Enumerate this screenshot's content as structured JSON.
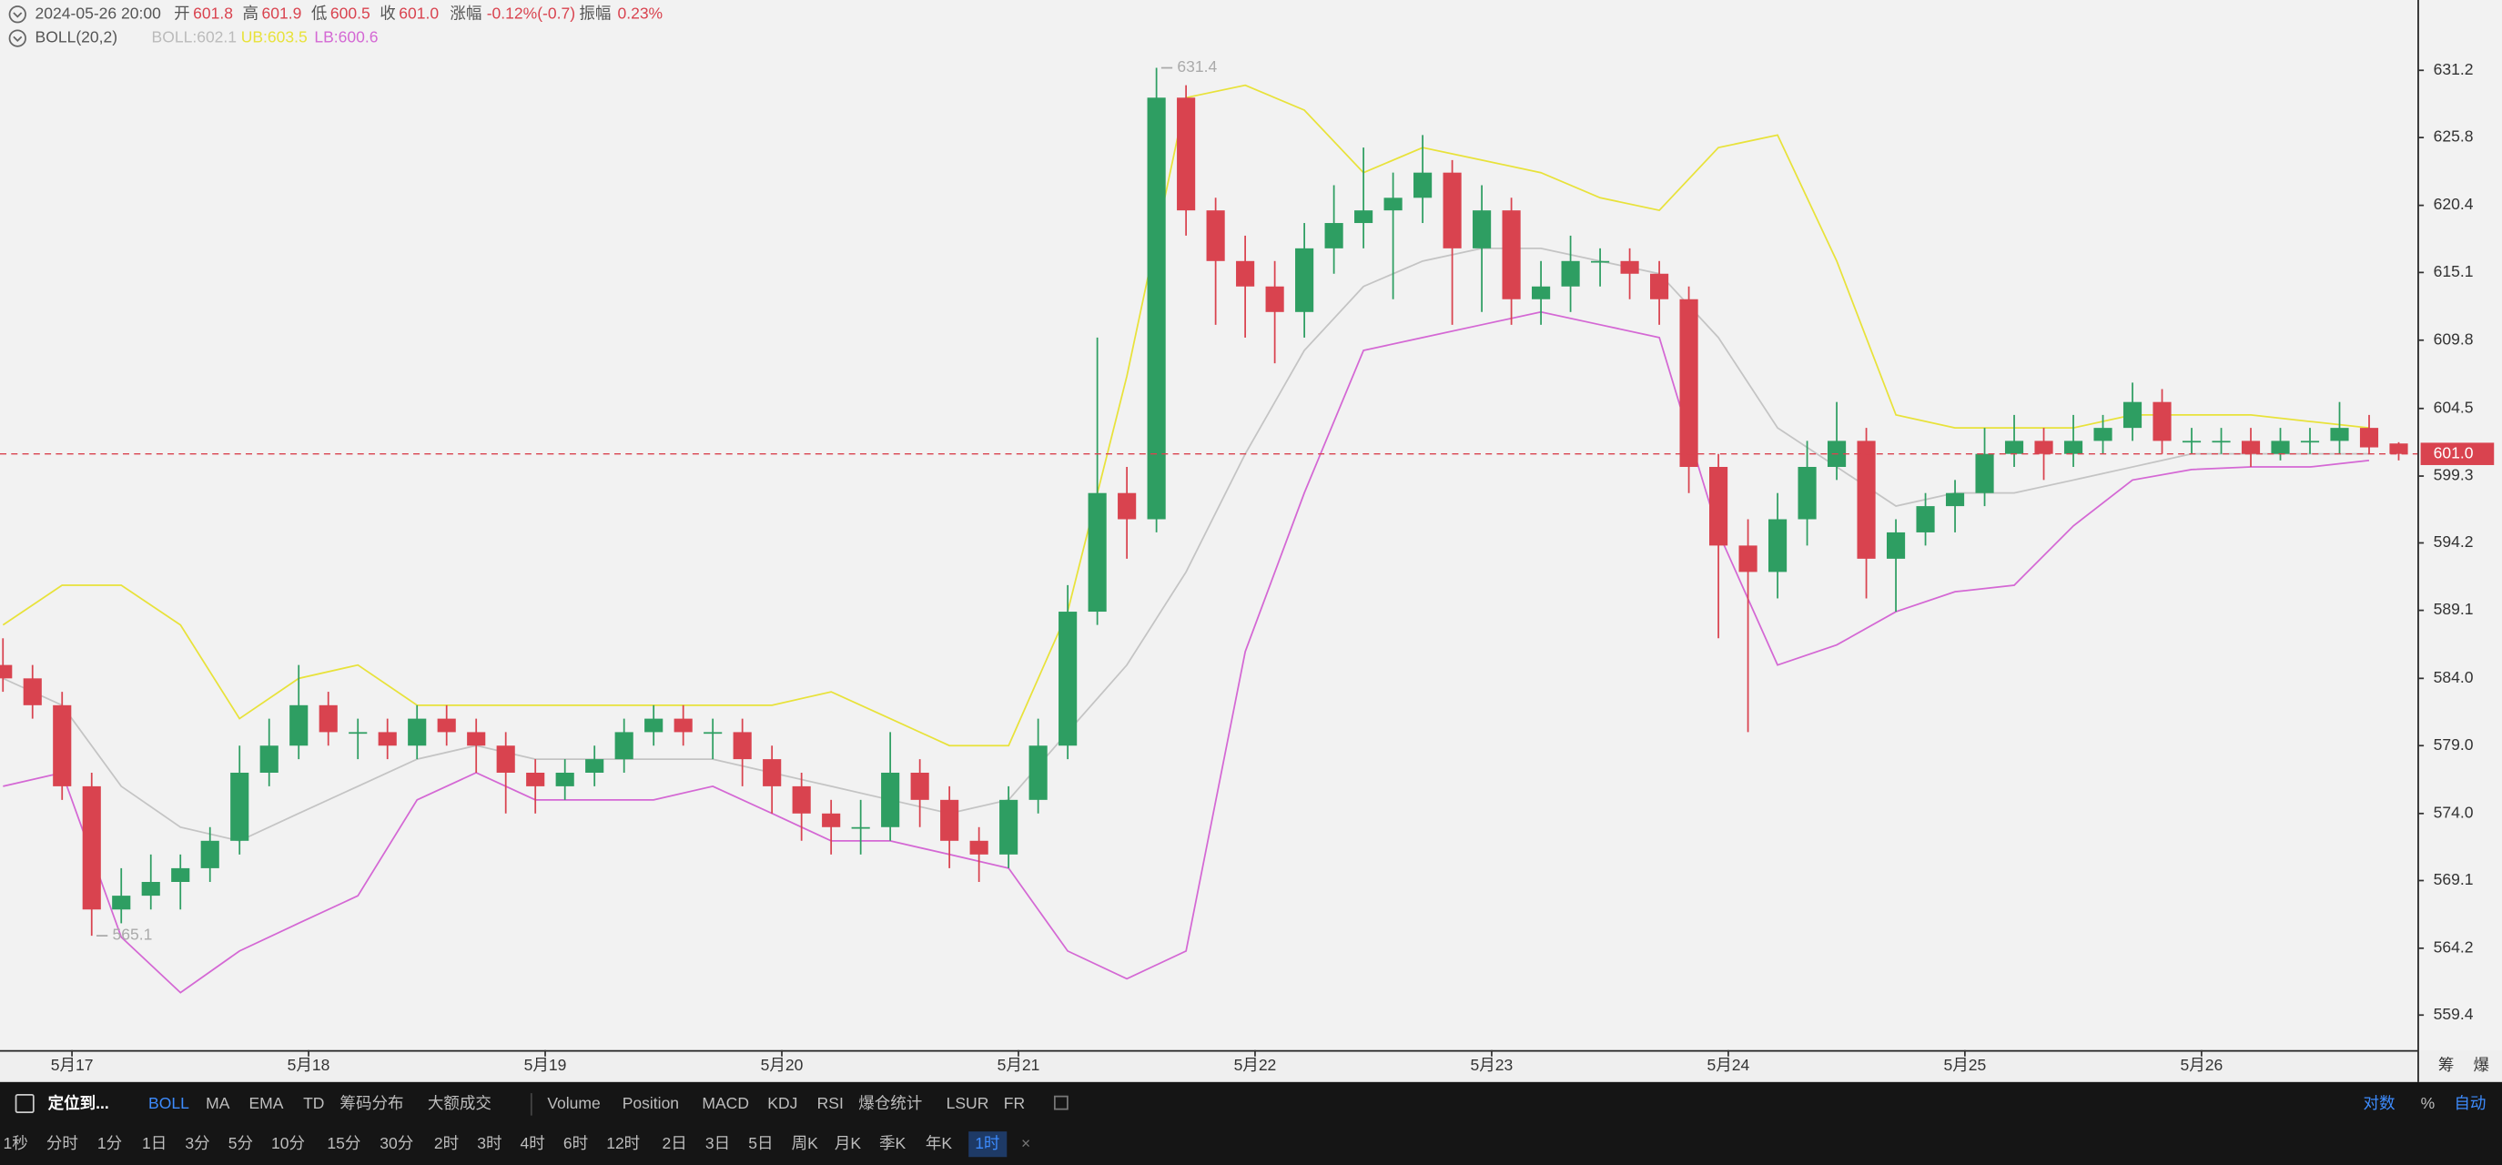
{
  "chart_data": {
    "type": "candlestick",
    "timestamp": "2024-05-26 20:00",
    "header_labels": {
      "open": "开",
      "high": "高",
      "low": "低",
      "close": "收",
      "change": "涨幅",
      "amplitude": "振幅"
    },
    "change": "-0.12%(-0.7)",
    "amplitude": "0.23%",
    "indicator": "BOLL(20,2)",
    "log_scale": true,
    "colors": {
      "up": "#2e9e62",
      "down": "#d9434f"
    },
    "x": [
      -7,
      -4,
      -1,
      2,
      5,
      8,
      11,
      14,
      17,
      20,
      23,
      26,
      29,
      32,
      35,
      38,
      41,
      44,
      47,
      50,
      53,
      56,
      59,
      62,
      65,
      68,
      71,
      74,
      77,
      80,
      83,
      86,
      89,
      92,
      95,
      98,
      101,
      104,
      107,
      110,
      113,
      116,
      119,
      122,
      125,
      128,
      131,
      134,
      137,
      140,
      143,
      146,
      149,
      152,
      155,
      158,
      161,
      164,
      167,
      170,
      173,
      176,
      179,
      182,
      185,
      188,
      191,
      194,
      197,
      200,
      203,
      206,
      209,
      212,
      215,
      218,
      221,
      224,
      227,
      230,
      233,
      236
    ],
    "open": [
      585,
      584,
      582,
      576,
      567,
      568,
      569,
      570,
      572,
      577,
      579,
      582,
      580,
      580,
      579,
      581,
      580,
      579,
      577,
      576,
      577,
      578,
      580,
      581,
      580,
      580,
      578,
      576,
      574,
      573,
      573,
      577,
      575,
      572,
      571,
      575,
      579,
      589,
      598,
      596,
      629,
      620,
      616,
      614,
      612,
      617,
      619,
      620,
      621,
      623,
      617,
      620,
      613,
      614,
      616,
      616,
      615,
      613,
      600,
      594,
      592,
      596,
      600,
      602,
      593,
      595,
      597,
      598,
      601,
      602,
      601,
      602,
      603,
      605,
      602,
      602,
      602,
      601,
      602,
      602,
      603,
      601.8
    ],
    "high": [
      587,
      585,
      583,
      577,
      570,
      571,
      571,
      573,
      579,
      581,
      585,
      583,
      581,
      581,
      582,
      582,
      581,
      580,
      578,
      578,
      579,
      581,
      582,
      582,
      581,
      581,
      579,
      577,
      575,
      575,
      580,
      578,
      576,
      573,
      576,
      581,
      591,
      610,
      600,
      631.4,
      630,
      621,
      618,
      616,
      619,
      622,
      625,
      623,
      626,
      624,
      622,
      621,
      616,
      618,
      617,
      617,
      616,
      614,
      601,
      596,
      598,
      602,
      605,
      603,
      596,
      598,
      599,
      603,
      604,
      603,
      604,
      604,
      606.5,
      606,
      603,
      603,
      603,
      603,
      603,
      605,
      604,
      601.9
    ],
    "low": [
      583,
      581,
      575,
      565.1,
      566,
      567,
      567,
      569,
      571,
      576,
      578,
      579,
      578,
      578,
      578,
      579,
      577,
      574,
      574,
      575,
      576,
      577,
      579,
      579,
      578,
      576,
      574,
      572,
      571,
      571,
      572,
      573,
      570,
      569,
      570,
      574,
      578,
      588,
      593,
      595,
      618,
      611,
      610,
      608,
      610,
      615,
      617,
      613,
      619,
      611,
      612,
      611,
      611,
      612,
      614,
      613,
      611,
      598,
      587,
      580,
      590,
      594,
      599,
      590,
      589,
      594,
      595,
      597,
      600,
      599,
      600,
      601,
      602,
      601,
      601,
      601,
      600,
      600.5,
      601,
      601,
      601,
      600.5
    ],
    "close": [
      584,
      582,
      576,
      567,
      568,
      569,
      570,
      572,
      577,
      579,
      582,
      580,
      580,
      579,
      581,
      580,
      579,
      577,
      576,
      577,
      578,
      580,
      581,
      580,
      580,
      578,
      576,
      574,
      573,
      573,
      577,
      575,
      572,
      571,
      575,
      579,
      589,
      598,
      596,
      629,
      620,
      616,
      614,
      612,
      617,
      619,
      620,
      621,
      623,
      617,
      620,
      613,
      614,
      616,
      616,
      615,
      613,
      600,
      594,
      592,
      596,
      600,
      602,
      593,
      595,
      597,
      598,
      601,
      602,
      601,
      602,
      603,
      605,
      602,
      602,
      602,
      601,
      602,
      602,
      603,
      601.5,
      601
    ],
    "bands": {
      "x": [
        -7,
        -1,
        5,
        11,
        17,
        23,
        29,
        35,
        41,
        47,
        53,
        59,
        65,
        71,
        77,
        83,
        89,
        95,
        101,
        107,
        113,
        119,
        125,
        131,
        137,
        143,
        149,
        155,
        161,
        167,
        173,
        179,
        185,
        191,
        197,
        203,
        209,
        215,
        221,
        227,
        233
      ],
      "series": [
        {
          "name": "BOLL",
          "label": "BOLL:602.1",
          "color": "#c4c4c4",
          "values": [
            584,
            582,
            576,
            573,
            572,
            574,
            576,
            578,
            579,
            578,
            578,
            578,
            578,
            577,
            576,
            575,
            574,
            575,
            580,
            585,
            592,
            601,
            609,
            614,
            616,
            617,
            617,
            616,
            615,
            610,
            603,
            600,
            597,
            598,
            598,
            599,
            600,
            601,
            601,
            601,
            601
          ]
        },
        {
          "name": "UB",
          "label": "UB:603.5",
          "color": "#e8e23a",
          "values": [
            588,
            591,
            591,
            588,
            581,
            584,
            585,
            582,
            582,
            582,
            582,
            582,
            582,
            582,
            583,
            581,
            579,
            579,
            589,
            607,
            629,
            630,
            628,
            623,
            625,
            624,
            623,
            621,
            620,
            625,
            626,
            616,
            604,
            603,
            603,
            603,
            604,
            604,
            604,
            603.5,
            603
          ]
        },
        {
          "name": "LB",
          "label": "LB:600.6",
          "color": "#d468d4",
          "values": [
            576,
            577,
            565,
            561,
            564,
            566,
            568,
            575,
            577,
            575,
            575,
            575,
            576,
            574,
            572,
            572,
            571,
            570,
            564,
            562,
            564,
            586,
            598,
            609,
            610,
            611,
            612,
            611,
            610,
            595,
            585,
            586.5,
            589,
            590.5,
            591,
            595.5,
            599,
            599.8,
            600,
            600,
            600.5
          ]
        }
      ]
    },
    "current_price": {
      "value": 601,
      "label": "601.0"
    },
    "annotations": {
      "high_index": 39,
      "low_index": 3
    },
    "xlim": [
      -7.3,
      237.9
    ],
    "xticks": [
      {
        "value": 0,
        "label": "5月17"
      },
      {
        "value": 24,
        "label": "5月18"
      },
      {
        "value": 48,
        "label": "5月19"
      },
      {
        "value": 72,
        "label": "5月20"
      },
      {
        "value": 96,
        "label": "5月21"
      },
      {
        "value": 120,
        "label": "5月22"
      },
      {
        "value": 144,
        "label": "5月23"
      },
      {
        "value": 168,
        "label": "5月24"
      },
      {
        "value": 192,
        "label": "5月25"
      },
      {
        "value": 216,
        "label": "5月26"
      }
    ],
    "ylim": [
      556.9,
      636.9
    ],
    "yticks": [
      631.2,
      625.8,
      620.4,
      615.1,
      609.8,
      604.5,
      599.3,
      594.2,
      589.1,
      {
        "value": 584,
        "label": "584.0"
      },
      {
        "value": 579,
        "label": "579.0"
      },
      {
        "value": 574,
        "label": "574.0"
      },
      569.1,
      564.2,
      559.4
    ]
  },
  "axis_corner": [
    "筹",
    "爆"
  ],
  "toolbar": {
    "locate": "定位到...",
    "indicators": [
      "BOLL",
      "MA",
      "EMA",
      "TD",
      "筹码分布",
      "大额成交",
      "Volume",
      "Position",
      "MACD",
      "KDJ",
      "RSI",
      "爆仓统计",
      "LSUR",
      "FR"
    ],
    "right": [
      "对数",
      "%",
      "自动"
    ],
    "intervals": [
      "1秒",
      "分时",
      "1分",
      "1日",
      "3分",
      "5分",
      "10分",
      "15分",
      "30分",
      "2时",
      "3时",
      "4时",
      "6时",
      "12时",
      "2日",
      "3日",
      "5日",
      "周K",
      "月K",
      "季K",
      "年K",
      "1时"
    ]
  }
}
